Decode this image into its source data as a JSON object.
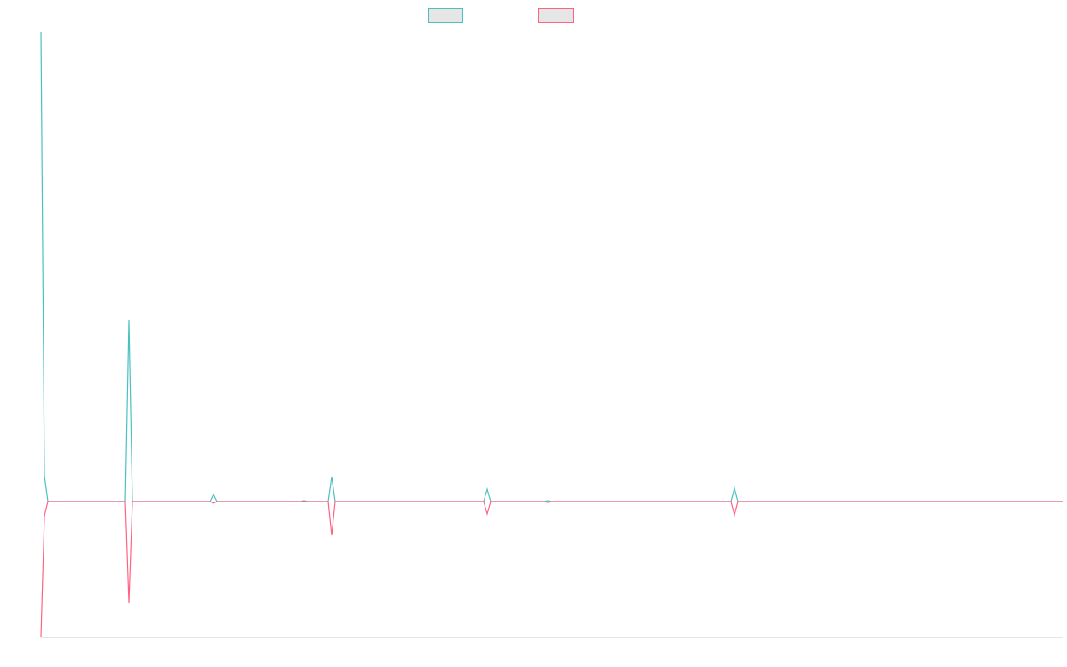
{
  "chart_data": {
    "type": "line",
    "x": [
      0,
      4,
      8,
      95,
      99,
      103,
      190,
      194,
      198,
      292,
      296,
      300,
      323,
      327,
      331,
      498,
      502,
      506,
      566,
      570,
      574,
      776,
      780,
      784,
      1149
    ],
    "xlim": [
      0,
      1149
    ],
    "ylim": [
      -152,
      528
    ],
    "series": [
      {
        "color": "#4bc0c0",
        "values": [
          528,
          29,
          0,
          0,
          204,
          0,
          0,
          8,
          0,
          0,
          1,
          0,
          0,
          28,
          0,
          0,
          14,
          0,
          0,
          1,
          0,
          0,
          15,
          0,
          0
        ]
      },
      {
        "color": "#ff6384",
        "values": [
          -152,
          -16,
          0,
          0,
          -114,
          0,
          0,
          -2,
          0,
          0,
          0,
          0,
          0,
          -38,
          0,
          0,
          -14,
          0,
          0,
          -1,
          0,
          0,
          -15,
          0,
          0
        ]
      }
    ]
  }
}
